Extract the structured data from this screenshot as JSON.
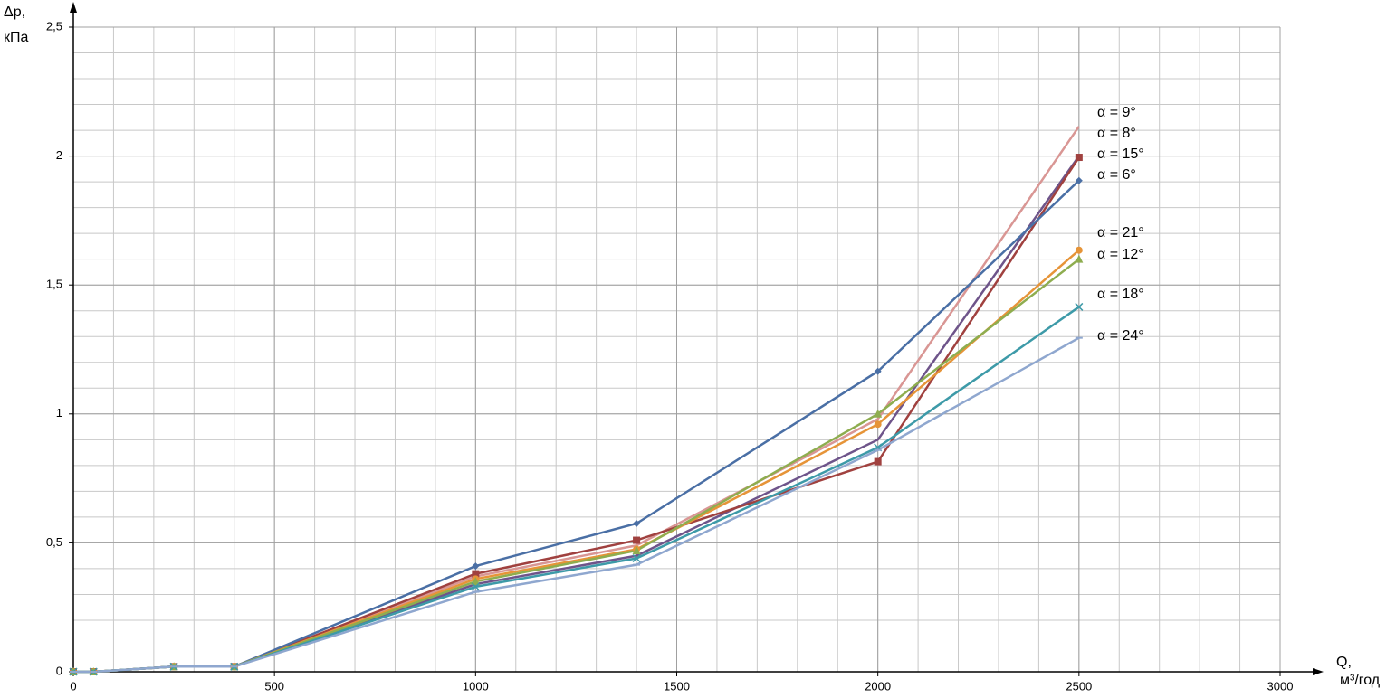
{
  "chart_data": {
    "type": "line",
    "y_label": [
      "Δp,",
      "кПа"
    ],
    "x_label": [
      "Q,",
      "м³/год"
    ],
    "x": [
      0,
      50,
      250,
      400,
      1000,
      1400,
      2000,
      2500
    ],
    "xlim": [
      0,
      3000
    ],
    "xticks": [
      0,
      500,
      1000,
      1500,
      2000,
      2500,
      3000
    ],
    "ylim": [
      0,
      2.5
    ],
    "yticks": [
      0,
      {
        "value": 0.5,
        "label": "0,5"
      },
      1,
      {
        "value": 1.5,
        "label": "1,5"
      },
      2,
      {
        "value": 2.5,
        "label": "2,5"
      }
    ],
    "grid": true,
    "minor_grid": {
      "x": 100,
      "y": 0.1
    },
    "series": [
      {
        "name": "α = 9°",
        "color": "#d99694",
        "marker": "none",
        "values": [
          0,
          0,
          0.02,
          0.02,
          0.37,
          0.49,
          0.98,
          2.115
        ]
      },
      {
        "name": "α = 8°",
        "color": "#6e548a",
        "marker": "none",
        "values": [
          0,
          0,
          0.02,
          0.02,
          0.34,
          0.45,
          0.9,
          2.0
        ]
      },
      {
        "name": "α = 15°",
        "color": "#a0413f",
        "marker": "square",
        "values": [
          0,
          0,
          0.02,
          0.02,
          0.38,
          0.51,
          0.815,
          1.995
        ]
      },
      {
        "name": "α = 6°",
        "color": "#4a6fa5",
        "marker": "diamond",
        "values": [
          0,
          0,
          0.02,
          0.02,
          0.41,
          0.575,
          1.165,
          1.905
        ]
      },
      {
        "name": "α = 21°",
        "color": "#e69438",
        "marker": "circle",
        "values": [
          0,
          0,
          0.02,
          0.02,
          0.36,
          0.475,
          0.96,
          1.635
        ]
      },
      {
        "name": "α = 12°",
        "color": "#8ead4f",
        "marker": "triangle",
        "values": [
          0,
          0,
          0.02,
          0.02,
          0.35,
          0.47,
          1.0,
          1.6
        ]
      },
      {
        "name": "α = 18°",
        "color": "#3d9aa8",
        "marker": "cross",
        "values": [
          0,
          0,
          0.02,
          0.02,
          0.33,
          0.44,
          0.87,
          1.415
        ]
      },
      {
        "name": "α = 24°",
        "color": "#8fa7cf",
        "marker": "dash",
        "values": [
          0,
          0,
          0.02,
          0.02,
          0.31,
          0.415,
          0.86,
          1.295
        ]
      }
    ]
  }
}
